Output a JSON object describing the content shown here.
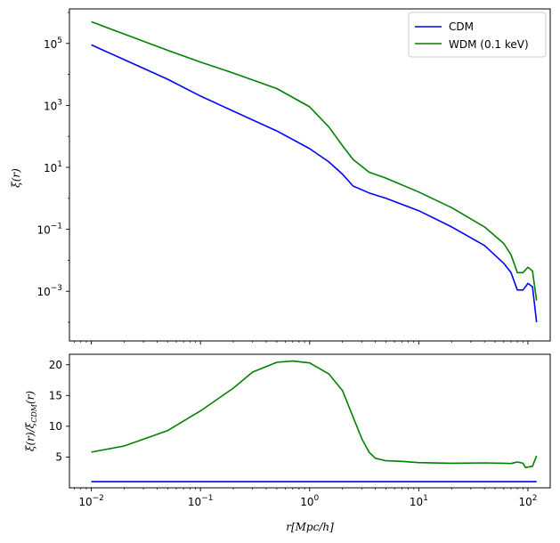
{
  "chart_data": [
    {
      "type": "line",
      "xscale": "log",
      "yscale": "log",
      "xlim": [
        0.0063,
        160
      ],
      "ylim": [
        2.5e-05,
        1300000
      ],
      "ylabel": "ξ(r)",
      "x_ticks": [
        {
          "value": 0.01,
          "base": "10",
          "exp": "−2"
        },
        {
          "value": 0.1,
          "base": "10",
          "exp": "−1"
        },
        {
          "value": 1,
          "base": "10",
          "exp": "0"
        },
        {
          "value": 10,
          "base": "10",
          "exp": "1"
        },
        {
          "value": 100,
          "base": "10",
          "exp": "2"
        }
      ],
      "y_ticks": [
        {
          "value": 0.001,
          "base": "10",
          "exp": "−3"
        },
        {
          "value": 0.1,
          "base": "10",
          "exp": "−1"
        },
        {
          "value": 10,
          "base": "10",
          "exp": "1"
        },
        {
          "value": 1000,
          "base": "10",
          "exp": "3"
        },
        {
          "value": 100000,
          "base": "10",
          "exp": "5"
        }
      ],
      "legend_position": "top-right",
      "grid": false,
      "series": [
        {
          "name": "CDM",
          "color": "#0000ff",
          "points": [
            [
              0.01,
              90000
            ],
            [
              0.02,
              30000
            ],
            [
              0.05,
              7000
            ],
            [
              0.1,
              2000
            ],
            [
              0.2,
              650
            ],
            [
              0.5,
              150
            ],
            [
              1,
              40
            ],
            [
              1.5,
              15
            ],
            [
              2,
              6
            ],
            [
              2.5,
              2.5
            ],
            [
              3.5,
              1.5
            ],
            [
              5,
              1.0
            ],
            [
              10,
              0.4
            ],
            [
              20,
              0.12
            ],
            [
              40,
              0.03
            ],
            [
              60,
              0.008
            ],
            [
              70,
              0.004
            ],
            [
              80,
              0.0011
            ],
            [
              90,
              0.0011
            ],
            [
              100,
              0.0018
            ],
            [
              110,
              0.0014
            ],
            [
              120,
              0.0001
            ]
          ]
        },
        {
          "name": "WDM (0.1 keV)",
          "color": "#008000",
          "points": [
            [
              0.01,
              500000
            ],
            [
              0.02,
              200000
            ],
            [
              0.05,
              60000
            ],
            [
              0.1,
              25000
            ],
            [
              0.2,
              11000
            ],
            [
              0.5,
              3500
            ],
            [
              1,
              900
            ],
            [
              1.5,
              200
            ],
            [
              2,
              50
            ],
            [
              2.5,
              18
            ],
            [
              3.5,
              7
            ],
            [
              5,
              4.5
            ],
            [
              10,
              1.6
            ],
            [
              20,
              0.5
            ],
            [
              40,
              0.12
            ],
            [
              60,
              0.035
            ],
            [
              70,
              0.015
            ],
            [
              80,
              0.004
            ],
            [
              90,
              0.004
            ],
            [
              100,
              0.006
            ],
            [
              110,
              0.0045
            ],
            [
              120,
              0.0005
            ]
          ]
        }
      ]
    },
    {
      "type": "line",
      "xscale": "log",
      "yscale": "linear",
      "xlim": [
        0.0063,
        160
      ],
      "ylim": [
        0,
        21.7
      ],
      "xlabel": "r[Mpc/h]",
      "ylabel": "ξ(r)/ξ_CDM(r)",
      "x_ticks": [
        {
          "value": 0.01,
          "base": "10",
          "exp": "−2"
        },
        {
          "value": 0.1,
          "base": "10",
          "exp": "−1"
        },
        {
          "value": 1,
          "base": "10",
          "exp": "0"
        },
        {
          "value": 10,
          "base": "10",
          "exp": "1"
        },
        {
          "value": 100,
          "base": "10",
          "exp": "2"
        }
      ],
      "y_ticks": [
        5,
        10,
        15,
        20
      ],
      "grid": false,
      "series": [
        {
          "color": "#0000ff",
          "points": [
            [
              0.01,
              1
            ],
            [
              120,
              1
            ]
          ]
        },
        {
          "color": "#008000",
          "points": [
            [
              0.01,
              5.8
            ],
            [
              0.02,
              6.8
            ],
            [
              0.05,
              9.3
            ],
            [
              0.1,
              12.5
            ],
            [
              0.2,
              16.2
            ],
            [
              0.3,
              18.8
            ],
            [
              0.5,
              20.4
            ],
            [
              0.7,
              20.6
            ],
            [
              1,
              20.3
            ],
            [
              1.5,
              18.5
            ],
            [
              2,
              15.8
            ],
            [
              2.5,
              11.5
            ],
            [
              3,
              8
            ],
            [
              3.5,
              5.8
            ],
            [
              4,
              4.8
            ],
            [
              5,
              4.4
            ],
            [
              7,
              4.3
            ],
            [
              10,
              4.1
            ],
            [
              20,
              4.0
            ],
            [
              40,
              4.05
            ],
            [
              60,
              4.0
            ],
            [
              70,
              3.95
            ],
            [
              80,
              4.2
            ],
            [
              90,
              4.0
            ],
            [
              95,
              3.3
            ],
            [
              110,
              3.5
            ],
            [
              120,
              5.2
            ]
          ]
        }
      ]
    }
  ],
  "legend": {
    "cdm_label": "CDM",
    "wdm_label": "WDM (0.1 keV)"
  },
  "labels": {
    "top_ylabel": "ξ(r)",
    "bottom_ylabel_main": "ξ(r)/ξ",
    "bottom_ylabel_sub": "CDM",
    "bottom_ylabel_tail": "(r)",
    "xlabel_r": "r",
    "xlabel_units": "[Mpc/h]"
  }
}
